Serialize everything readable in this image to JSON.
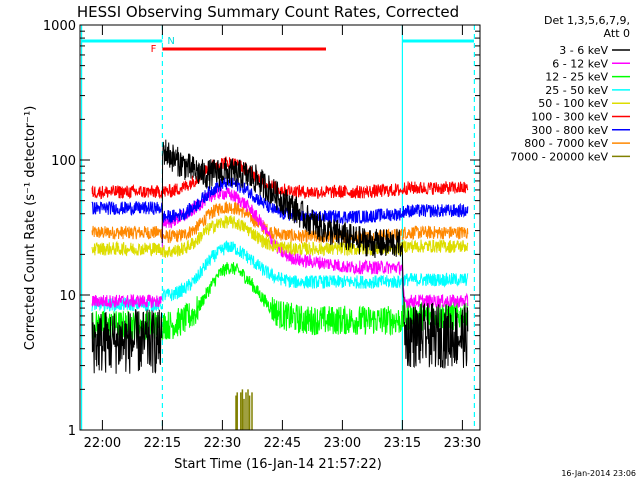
{
  "chart_data": {
    "type": "line",
    "title": "HESSI Observing Summary Count Rates, Corrected",
    "xlabel": "Start Time (16-Jan-14 21:57:22)",
    "ylabel": "Corrected Count Rate (s⁻¹ detector⁻¹)",
    "yscale": "log",
    "ylim": [
      1,
      1000
    ],
    "xlim_minutes_after_start": [
      -3,
      97
    ],
    "x_ticks": [
      {
        "label": "22:00",
        "t": 2.6
      },
      {
        "label": "22:15",
        "t": 17.6
      },
      {
        "label": "22:30",
        "t": 32.6
      },
      {
        "label": "22:45",
        "t": 47.6
      },
      {
        "label": "23:00",
        "t": 62.6
      },
      {
        "label": "23:15",
        "t": 77.6
      },
      {
        "label": "23:30",
        "t": 92.6
      }
    ],
    "y_ticks": [
      {
        "label": "1",
        "v": 1
      },
      {
        "label": "10",
        "v": 10
      },
      {
        "label": "100",
        "v": 100
      },
      {
        "label": "1000",
        "v": 1000
      }
    ],
    "legend": {
      "placement": "right",
      "header": [
        "Det 1,3,5,6,7,9,",
        "Att 0"
      ]
    },
    "series": [
      {
        "name": "3 - 6 keV",
        "color": "#000000",
        "t": [
          0,
          17.5,
          17.6,
          19,
          22,
          25,
          28,
          31,
          33,
          35,
          38,
          41,
          44,
          47,
          50,
          53,
          56,
          59,
          62,
          65,
          68,
          71,
          74,
          77.6,
          78,
          94
        ],
        "values": [
          4.5,
          4.5,
          120,
          110,
          95,
          85,
          78,
          80,
          82,
          80,
          78,
          72,
          62,
          52,
          45,
          38,
          33,
          30,
          28,
          26,
          25,
          24,
          24,
          24,
          5,
          5
        ]
      },
      {
        "name": "6 - 12 keV",
        "color": "#ff00ff",
        "t": [
          0,
          17.5,
          17.6,
          20,
          24,
          28,
          30,
          32,
          34,
          36,
          38,
          40,
          42,
          44,
          46,
          48,
          50,
          52,
          56,
          60,
          64,
          68,
          72,
          77.6,
          78,
          94
        ],
        "values": [
          9,
          9,
          35,
          35,
          40,
          50,
          55,
          57,
          56,
          53,
          48,
          42,
          35,
          28,
          23,
          20,
          19,
          18,
          17.5,
          17,
          16,
          16,
          16,
          16,
          9,
          9
        ]
      },
      {
        "name": "12 - 25 keV",
        "color": "#00ff00",
        "t": [
          0,
          17.5,
          17.6,
          20,
          23,
          26,
          28,
          30,
          32,
          34,
          36,
          38,
          40,
          42,
          44,
          46,
          48,
          50,
          53,
          56,
          60,
          64,
          68,
          72,
          77.6,
          78,
          94
        ],
        "values": [
          6,
          6,
          6,
          6,
          6.5,
          7.5,
          9.5,
          12,
          14.5,
          16,
          15.5,
          14,
          12,
          10,
          8.5,
          7.5,
          7,
          6.8,
          6.5,
          6.5,
          6.5,
          6.5,
          6.5,
          6.5,
          6.5,
          7,
          7
        ]
      },
      {
        "name": "25 - 50 keV",
        "color": "#00ffff",
        "t": [
          0,
          17.5,
          17.6,
          20,
          23,
          26,
          28,
          30,
          32,
          34,
          36,
          38,
          40,
          42,
          44,
          46,
          48,
          50,
          53,
          56,
          60,
          64,
          68,
          72,
          77.6,
          78,
          94
        ],
        "values": [
          8.5,
          8.5,
          10,
          10,
          11,
          13,
          16,
          19,
          21,
          23,
          22,
          20,
          18,
          16,
          14.5,
          13.5,
          13,
          12.5,
          12.5,
          12.5,
          12.5,
          12.5,
          12.5,
          12.5,
          12.5,
          13,
          13
        ]
      },
      {
        "name": "50 - 100 keV",
        "color": "#dddd00",
        "t": [
          0,
          17.5,
          17.6,
          20,
          23,
          26,
          28,
          30,
          32,
          34,
          36,
          38,
          40,
          42,
          44,
          46,
          48,
          50,
          53,
          56,
          60,
          64,
          68,
          72,
          77.6,
          78,
          94
        ],
        "values": [
          22,
          22,
          21,
          21,
          22,
          25,
          29,
          32,
          34,
          35,
          34,
          32,
          29,
          26,
          24,
          23,
          22.5,
          22,
          22,
          22,
          22,
          22,
          22,
          22,
          22,
          23,
          23
        ]
      },
      {
        "name": "100 - 300 keV",
        "color": "#ff0000",
        "t": [
          0,
          17.5,
          17.6,
          20,
          23,
          26,
          28,
          30,
          32,
          34,
          36,
          38,
          40,
          42,
          44,
          46,
          48,
          50,
          53,
          56,
          60,
          64,
          68,
          72,
          77.6,
          78,
          94
        ],
        "values": [
          58,
          58,
          58,
          59,
          63,
          72,
          82,
          90,
          95,
          96,
          93,
          87,
          80,
          72,
          66,
          62,
          60,
          59,
          58,
          58,
          58,
          58,
          58,
          59,
          60,
          62,
          62
        ]
      },
      {
        "name": "300 - 800 keV",
        "color": "#0000ff",
        "t": [
          0,
          17.5,
          17.6,
          20,
          23,
          26,
          28,
          30,
          32,
          34,
          36,
          38,
          40,
          42,
          44,
          46,
          48,
          50,
          53,
          56,
          60,
          64,
          68,
          72,
          77.6,
          78,
          94
        ],
        "values": [
          44,
          44,
          38,
          38,
          40,
          46,
          53,
          60,
          65,
          68,
          66,
          62,
          56,
          50,
          45,
          42,
          40,
          39,
          38,
          38,
          38,
          38,
          38,
          39,
          40,
          42,
          42
        ]
      },
      {
        "name": "800 - 7000 keV",
        "color": "#ff8800",
        "t": [
          0,
          17.5,
          17.6,
          20,
          23,
          26,
          28,
          30,
          32,
          34,
          36,
          38,
          40,
          42,
          44,
          46,
          48,
          50,
          53,
          56,
          60,
          64,
          68,
          72,
          77.6,
          78,
          94
        ],
        "values": [
          29,
          29,
          27,
          27,
          28,
          31,
          36,
          41,
          44,
          45,
          44,
          41,
          37,
          33,
          30,
          28.5,
          28,
          27.5,
          27,
          27,
          27,
          27,
          27,
          27.5,
          28,
          29,
          29
        ]
      },
      {
        "name": "7000 - 20000 keV",
        "color": "#808000",
        "t": [
          36.0,
          36.3,
          37.2,
          37.6,
          38.0,
          38.5,
          39.0,
          39.4,
          40.0
        ],
        "values": [
          1.8,
          1.9,
          1.9,
          2.0,
          1.7,
          1.9,
          2.0,
          1.8,
          1.9
        ]
      }
    ],
    "annotations": [
      {
        "label": "F",
        "color": "#ff0000",
        "kind": "flare_bar",
        "t_start": 17.6,
        "t_end": 58.5
      },
      {
        "label": "N",
        "color": "#00dddd",
        "kind": "night_marker",
        "t": 17.6
      }
    ],
    "night_bars": [
      {
        "color": "#00ffff",
        "t_start": -2.5,
        "t_end": 17.6
      },
      {
        "color": "#00ffff",
        "t_start": 77.6,
        "t_end": 95.5
      }
    ],
    "vertical_markers": [
      {
        "t": -2.6,
        "style": "solid",
        "color": "#00ffff"
      },
      {
        "t": 17.6,
        "style": "dashed",
        "color": "#00ffff"
      },
      {
        "t": 77.6,
        "style": "solid",
        "color": "#00ffff"
      },
      {
        "t": 95.6,
        "style": "dashed",
        "color": "#00ffff"
      }
    ],
    "timestamp": "16-Jan-2014 23:06"
  }
}
